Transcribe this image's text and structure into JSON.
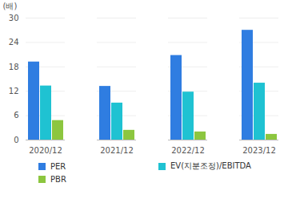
{
  "chart_data": {
    "type": "bar",
    "y_label": "(배)",
    "categories": [
      "2020/12",
      "2021/12",
      "2022/12",
      "2023/12"
    ],
    "series": [
      {
        "name": "PER",
        "color": "#2f7de1",
        "values": [
          19.2,
          13.2,
          20.8,
          27.0
        ]
      },
      {
        "name": "EV(지분조정)/EBITDA",
        "color": "#1fc2d2",
        "values": [
          13.3,
          9.1,
          11.8,
          14.0
        ]
      },
      {
        "name": "PBR",
        "color": "#8cc63f",
        "values": [
          4.8,
          2.4,
          2.0,
          1.4
        ]
      }
    ],
    "ylim": [
      0,
      30
    ],
    "yticks": [
      0,
      6,
      12,
      18,
      24,
      30
    ],
    "grid": true,
    "legend": "bottom"
  }
}
